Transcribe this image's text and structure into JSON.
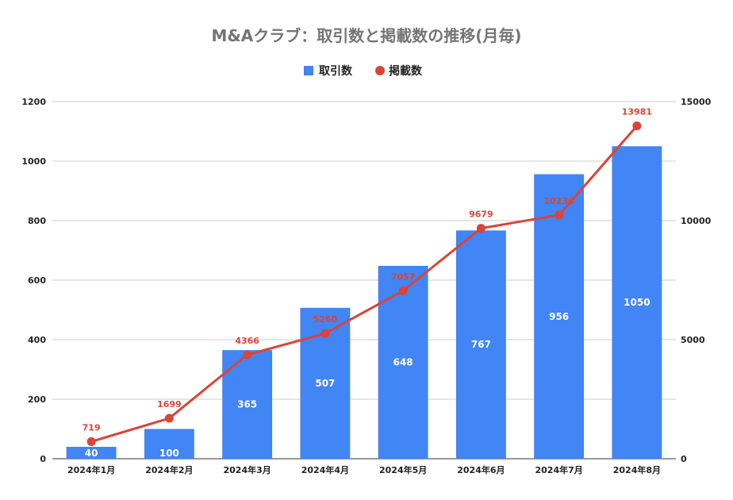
{
  "chart_data": {
    "type": "bar",
    "title": "M&Aクラブ：取引数と掲載数の推移(月毎)",
    "categories": [
      "2024年1月",
      "2024年2月",
      "2024年3月",
      "2024年4月",
      "2024年5月",
      "2024年6月",
      "2024年7月",
      "2024年8月"
    ],
    "series": [
      {
        "name": "取引数",
        "type": "bar",
        "axis": "left",
        "color": "#4285f4",
        "values": [
          40,
          100,
          365,
          507,
          648,
          767,
          956,
          1050
        ]
      },
      {
        "name": "掲載数",
        "type": "line",
        "axis": "right",
        "color": "#db4437",
        "values": [
          719,
          1699,
          4366,
          5260,
          7057,
          9679,
          10236,
          13981
        ]
      }
    ],
    "y_left": {
      "ylim": [
        0,
        1200
      ],
      "ticks": [
        "0",
        "200",
        "400",
        "600",
        "800",
        "1000",
        "1200"
      ]
    },
    "y_right": {
      "ylim": [
        0,
        15000
      ],
      "ticks": [
        "0",
        "5000",
        "10000",
        "15000"
      ]
    },
    "legend_position": "top-center",
    "grid": true
  }
}
